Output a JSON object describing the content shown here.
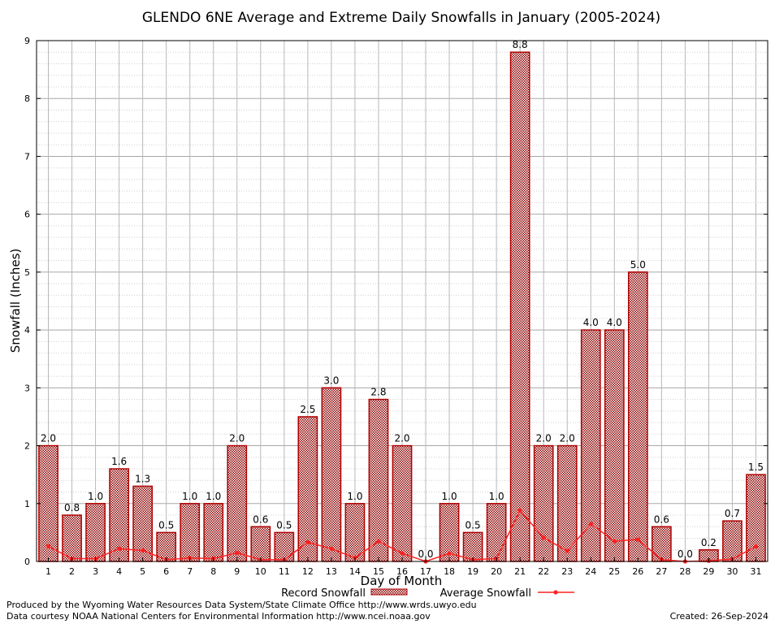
{
  "chart_data": {
    "type": "bar",
    "title": "GLENDO 6NE Average and Extreme Daily Snowfalls in January (2005-2024)",
    "xlabel": "Day of Month",
    "ylabel": "Snowfall (Inches)",
    "ylim": [
      0,
      9
    ],
    "yticks": [
      "0",
      "1",
      "2",
      "3",
      "4",
      "5",
      "6",
      "7",
      "8",
      "9"
    ],
    "grid": true,
    "categories": [
      "1",
      "2",
      "3",
      "4",
      "5",
      "6",
      "7",
      "8",
      "9",
      "10",
      "11",
      "12",
      "13",
      "14",
      "15",
      "16",
      "17",
      "18",
      "19",
      "20",
      "21",
      "22",
      "23",
      "24",
      "25",
      "26",
      "27",
      "28",
      "29",
      "30",
      "31"
    ],
    "series": [
      {
        "name": "Record Snowfall",
        "type": "bar",
        "color": "#b00000",
        "values": [
          2.0,
          0.8,
          1.0,
          1.6,
          1.3,
          0.5,
          1.0,
          1.0,
          2.0,
          0.6,
          0.5,
          2.5,
          3.0,
          1.0,
          2.8,
          2.0,
          0.0,
          1.0,
          0.5,
          1.0,
          8.8,
          2.0,
          2.0,
          4.0,
          4.0,
          5.0,
          0.6,
          0.0,
          0.2,
          0.7,
          1.5
        ],
        "labels": [
          "2.0",
          "0.8",
          "1.0",
          "1.6",
          "1.3",
          "0.5",
          "1.0",
          "1.0",
          "2.0",
          "0.6",
          "0.5",
          "2.5",
          "3.0",
          "1.0",
          "2.8",
          "2.0",
          "0.0",
          "1.0",
          "0.5",
          "1.0",
          "8.8",
          "2.0",
          "2.0",
          "4.0",
          "4.0",
          "5.0",
          "0.6",
          "0.0",
          "0.2",
          "0.7",
          "1.5"
        ]
      },
      {
        "name": "Average Snowfall",
        "type": "line",
        "color": "#ff2020",
        "values": [
          0.26,
          0.05,
          0.05,
          0.22,
          0.19,
          0.03,
          0.06,
          0.05,
          0.15,
          0.03,
          0.03,
          0.33,
          0.22,
          0.06,
          0.35,
          0.14,
          0.0,
          0.14,
          0.03,
          0.05,
          0.88,
          0.41,
          0.18,
          0.65,
          0.35,
          0.38,
          0.03,
          0.0,
          0.01,
          0.04,
          0.26
        ]
      }
    ],
    "legend": "bottom-center"
  },
  "footer": {
    "produced_by": "Produced by the Wyoming Water Resources Data System/State Climate Office http://www.wrds.uwyo.edu",
    "courtesy": "Data courtesy NOAA National Centers for Environmental Information http://www.ncei.noaa.gov",
    "created": "Created:  26-Sep-2024"
  }
}
